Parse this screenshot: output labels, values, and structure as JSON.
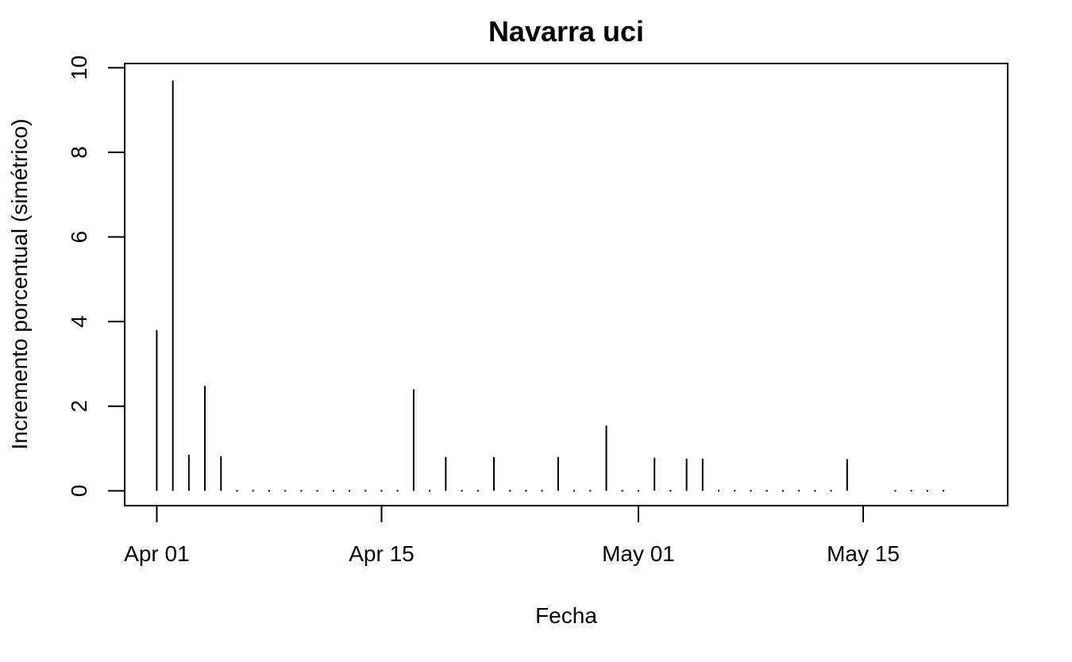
{
  "chart_data": {
    "type": "line",
    "title": "Navarra uci",
    "xlabel": "Fecha",
    "ylabel": "Incremento porcentual (simétrico)",
    "x_start_date": "2020-04-01",
    "x_end_date": "2020-05-20",
    "xlim": [
      "2020-03-30",
      "2020-05-24"
    ],
    "ylim": [
      -0.35,
      10.1
    ],
    "xticks": [
      {
        "date": "2020-04-01",
        "label": "Apr 01"
      },
      {
        "date": "2020-04-15",
        "label": "Apr 15"
      },
      {
        "date": "2020-05-01",
        "label": "May 01"
      },
      {
        "date": "2020-05-15",
        "label": "May 15"
      }
    ],
    "yticks": [
      0,
      2,
      4,
      6,
      8,
      10
    ],
    "grid": false,
    "legend": "none",
    "series": [
      {
        "x": [
          "2020-04-01",
          "2020-04-02",
          "2020-04-03",
          "2020-04-04",
          "2020-04-05",
          "2020-04-06",
          "2020-04-07",
          "2020-04-08",
          "2020-04-09",
          "2020-04-10",
          "2020-04-11",
          "2020-04-12",
          "2020-04-13",
          "2020-04-14",
          "2020-04-15",
          "2020-04-16",
          "2020-04-17",
          "2020-04-18",
          "2020-04-19",
          "2020-04-20",
          "2020-04-21",
          "2020-04-22",
          "2020-04-23",
          "2020-04-24",
          "2020-04-25",
          "2020-04-26",
          "2020-04-27",
          "2020-04-28",
          "2020-04-29",
          "2020-04-30",
          "2020-05-01",
          "2020-05-02",
          "2020-05-03",
          "2020-05-04",
          "2020-05-05",
          "2020-05-06",
          "2020-05-07",
          "2020-05-08",
          "2020-05-09",
          "2020-05-10",
          "2020-05-11",
          "2020-05-12",
          "2020-05-13",
          "2020-05-14",
          "2020-05-17",
          "2020-05-18",
          "2020-05-19",
          "2020-05-20"
        ],
        "values": [
          3.8,
          9.7,
          0.85,
          2.48,
          0.82,
          0,
          0,
          0,
          0,
          0,
          0,
          0,
          0,
          0,
          0,
          0,
          2.4,
          0,
          0.8,
          0,
          0,
          0.8,
          0,
          0,
          0,
          0.8,
          0,
          0,
          1.54,
          0,
          0,
          0.78,
          0,
          0.76,
          0.76,
          0,
          0,
          0,
          0,
          0,
          0,
          0,
          0,
          0.75,
          0,
          0,
          0,
          0
        ]
      }
    ]
  }
}
